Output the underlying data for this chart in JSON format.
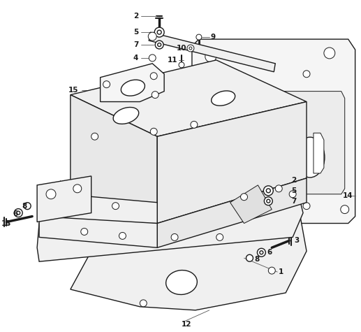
{
  "background_color": "#ffffff",
  "fig_width": 5.17,
  "fig_height": 4.75,
  "dpi": 100,
  "line_color": "#1a1a1a",
  "label_fontsize": 7.5,
  "label_fontweight": "bold"
}
